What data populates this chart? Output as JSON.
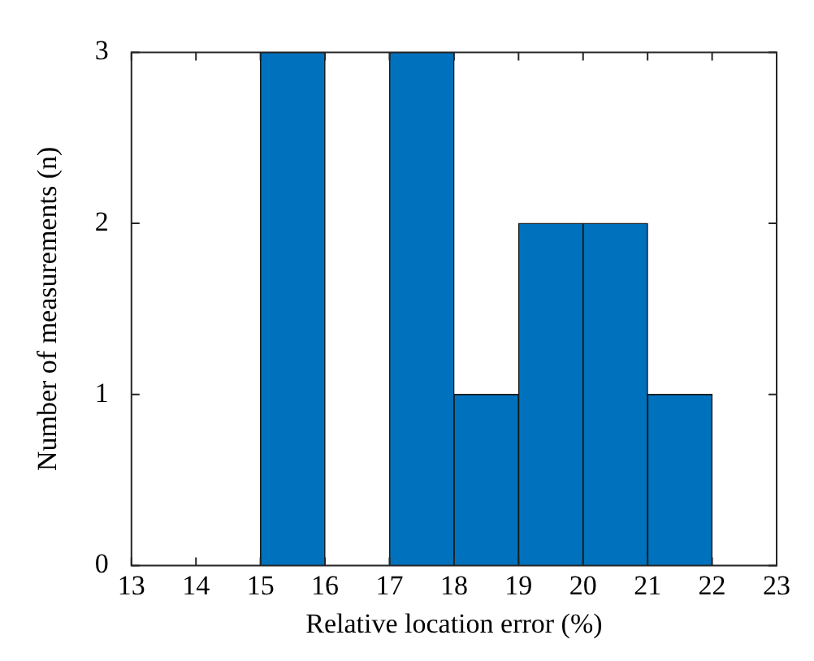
{
  "chart_data": {
    "type": "histogram",
    "xlabel": "Relative location error (%)",
    "ylabel": "Number of measurements (n)",
    "bins": [
      15,
      16,
      17,
      18,
      19,
      20,
      21,
      22
    ],
    "values": [
      3,
      0,
      3,
      1,
      2,
      2,
      1
    ],
    "color": "#0072bd",
    "xlim": [
      13,
      23
    ],
    "xticks": [
      13,
      14,
      15,
      16,
      17,
      18,
      19,
      20,
      21,
      22,
      23
    ],
    "ylim": [
      0,
      3
    ],
    "yticks": [
      0,
      1,
      2,
      3
    ],
    "grid": false,
    "legend": false
  }
}
